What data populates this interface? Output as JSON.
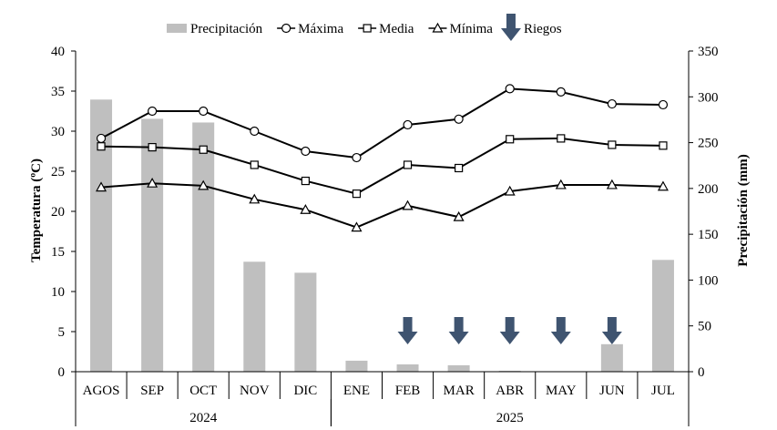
{
  "chart_data": {
    "type": "bar",
    "categories": [
      "AGOS",
      "SEP",
      "OCT",
      "NOV",
      "DIC",
      "ENE",
      "FEB",
      "MAR",
      "ABR",
      "MAY",
      "JUN",
      "JUL"
    ],
    "year_groups": [
      {
        "label": "2024",
        "start": 0,
        "end": 4
      },
      {
        "label": "2025",
        "start": 5,
        "end": 11
      }
    ],
    "ylabel": "Temperatura (ºC)",
    "y2label": "Precipitación (mm)",
    "ylim": [
      0,
      40
    ],
    "y_ticks": [
      0,
      5,
      10,
      15,
      20,
      25,
      30,
      35,
      40
    ],
    "y2lim": [
      0,
      350
    ],
    "y2_ticks": [
      0,
      50,
      100,
      150,
      200,
      250,
      300,
      350
    ],
    "series": [
      {
        "name": "Precipitación",
        "type": "bar",
        "axis": "right",
        "color": "#bfbfbf",
        "values": [
          297,
          276,
          272,
          120,
          108,
          12,
          8,
          7,
          1,
          0,
          30,
          122
        ]
      },
      {
        "name": "Máxima",
        "type": "line",
        "marker": "circle",
        "axis": "left",
        "color": "#000000",
        "values": [
          29.1,
          32.5,
          32.5,
          30.0,
          27.5,
          26.7,
          30.8,
          31.5,
          35.3,
          34.9,
          33.4,
          33.3
        ]
      },
      {
        "name": "Media",
        "type": "line",
        "marker": "square",
        "axis": "left",
        "color": "#000000",
        "values": [
          28.1,
          28.0,
          27.7,
          25.8,
          23.8,
          22.2,
          25.8,
          25.4,
          29.0,
          29.1,
          28.3,
          28.2
        ]
      },
      {
        "name": "Mínima",
        "type": "line",
        "marker": "triangle",
        "axis": "left",
        "color": "#000000",
        "values": [
          23.0,
          23.5,
          23.2,
          21.5,
          20.2,
          18.0,
          20.7,
          19.3,
          22.5,
          23.3,
          23.3,
          23.1
        ]
      }
    ],
    "riegos": {
      "label": "Riegos",
      "color": "#3f5470",
      "months": [
        "FEB",
        "MAR",
        "ABR",
        "MAY",
        "JUN"
      ]
    },
    "legend": "top"
  }
}
